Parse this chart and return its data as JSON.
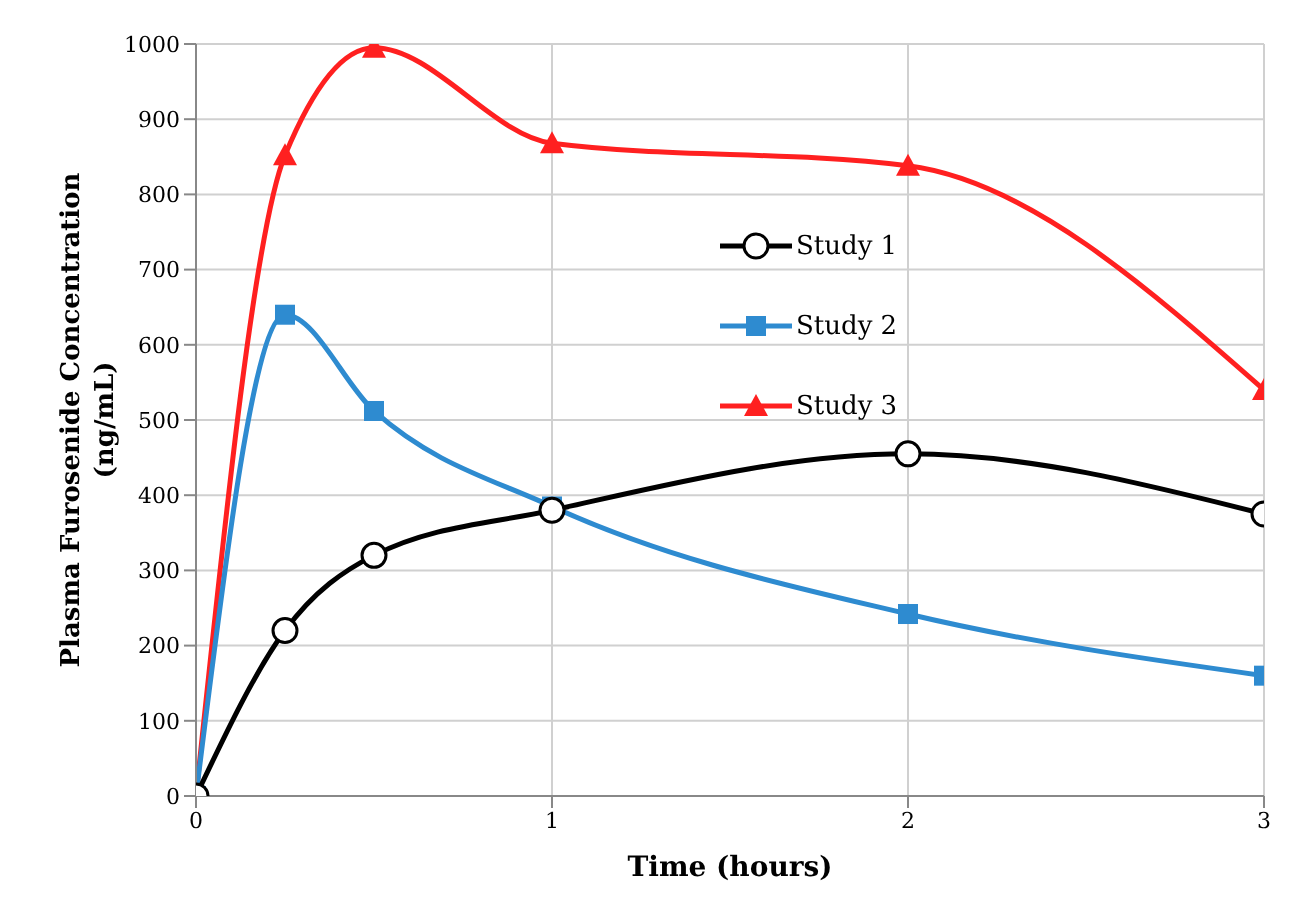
{
  "chart_data": {
    "type": "line",
    "xlabel": "Time (hours)",
    "ylabel": "Plasma Furosenide Concentration (ng/mL)",
    "x": [
      0,
      0.25,
      0.5,
      1,
      2,
      3
    ],
    "series": [
      {
        "name": "Study 1",
        "color": "#000000",
        "marker": "circle",
        "values": [
          0,
          220,
          320,
          380,
          455,
          375
        ]
      },
      {
        "name": "Study 2",
        "color": "#2e8bd0",
        "marker": "square",
        "values": [
          0,
          640,
          512,
          385,
          242,
          160
        ]
      },
      {
        "name": "Study 3",
        "color": "#ff2020",
        "marker": "triangle",
        "values": [
          0,
          852,
          995,
          868,
          838,
          540
        ]
      }
    ],
    "xlim": [
      0,
      3
    ],
    "xticks": [
      0,
      1,
      2,
      3
    ],
    "ylim": [
      0,
      1000
    ],
    "yticks": [
      0,
      100,
      200,
      300,
      400,
      500,
      600,
      700,
      800,
      900,
      1000
    ],
    "grid": true,
    "legend": "right",
    "line_style": "solid"
  }
}
